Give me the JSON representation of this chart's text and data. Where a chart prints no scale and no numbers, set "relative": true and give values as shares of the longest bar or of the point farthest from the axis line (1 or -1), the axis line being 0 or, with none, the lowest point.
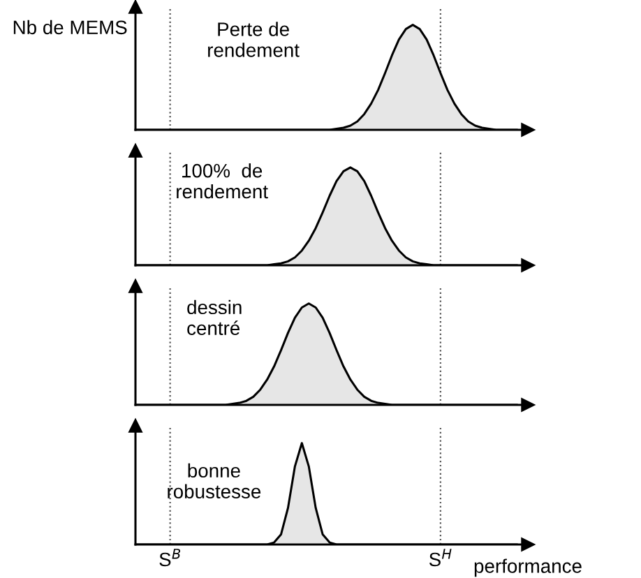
{
  "chart_data": [
    {
      "type": "area",
      "relative": true,
      "ylabel": "Nb de MEMS",
      "annotations": [
        "Perte de\nrendement"
      ],
      "color": "#e6e6e6",
      "categories": [
        null,
        null,
        null,
        null,
        null,
        null,
        null,
        null,
        null,
        null,
        null,
        null,
        null,
        null,
        null,
        null,
        null,
        null,
        null,
        null,
        null,
        null,
        null,
        null,
        null,
        null,
        null,
        null,
        null,
        null,
        null,
        null,
        null,
        null,
        null,
        null,
        null,
        null,
        null,
        null,
        null,
        null,
        null,
        null,
        null,
        null,
        null,
        null,
        null,
        null,
        null,
        null,
        null,
        null,
        null,
        null
      ],
      "values": [
        0,
        0,
        0,
        0,
        0,
        0,
        0,
        0,
        0,
        0,
        0,
        0,
        0,
        0,
        0,
        0,
        0,
        0,
        0,
        0,
        0,
        0,
        0,
        0,
        0,
        0,
        0,
        0,
        0,
        0.01,
        0.02,
        0.04,
        0.08,
        0.15,
        0.25,
        0.38,
        0.54,
        0.71,
        0.86,
        0.96,
        1,
        0.96,
        0.86,
        0.71,
        0.54,
        0.38,
        0.25,
        0.15,
        0.08,
        0.04,
        0.02,
        0.01,
        0,
        0,
        0,
        0
      ]
    },
    {
      "type": "area",
      "relative": true,
      "annotations": [
        "100%  de\nrendement"
      ],
      "color": "#e6e6e6",
      "categories": [
        null,
        null,
        null,
        null,
        null,
        null,
        null,
        null,
        null,
        null,
        null,
        null,
        null,
        null,
        null,
        null,
        null,
        null,
        null,
        null,
        null,
        null,
        null,
        null,
        null,
        null,
        null,
        null,
        null,
        null,
        null,
        null,
        null,
        null,
        null,
        null,
        null,
        null,
        null,
        null,
        null,
        null,
        null,
        null,
        null,
        null,
        null,
        null,
        null,
        null,
        null,
        null,
        null,
        null,
        null,
        null
      ],
      "values": [
        0,
        0,
        0,
        0,
        0,
        0,
        0,
        0,
        0,
        0,
        0,
        0,
        0,
        0,
        0,
        0,
        0,
        0,
        0,
        0,
        0.01,
        0.02,
        0.04,
        0.08,
        0.15,
        0.25,
        0.38,
        0.54,
        0.71,
        0.86,
        0.96,
        1,
        0.96,
        0.86,
        0.71,
        0.54,
        0.38,
        0.25,
        0.15,
        0.08,
        0.04,
        0.02,
        0.01,
        0,
        0,
        0,
        0,
        0,
        0,
        0,
        0,
        0,
        0,
        0,
        0,
        0
      ]
    },
    {
      "type": "area",
      "relative": true,
      "annotations": [
        "dessin\ncentré"
      ],
      "color": "#e6e6e6",
      "categories": [
        null,
        null,
        null,
        null,
        null,
        null,
        null,
        null,
        null,
        null,
        null,
        null,
        null,
        null,
        null,
        null,
        null,
        null,
        null,
        null,
        null,
        null,
        null,
        null,
        null,
        null,
        null,
        null,
        null,
        null,
        null,
        null,
        null,
        null,
        null,
        null,
        null,
        null,
        null,
        null,
        null,
        null,
        null,
        null,
        null,
        null,
        null,
        null,
        null,
        null,
        null,
        null,
        null,
        null,
        null,
        null
      ],
      "values": [
        0,
        0,
        0,
        0,
        0,
        0,
        0,
        0,
        0,
        0,
        0,
        0,
        0,
        0,
        0.01,
        0.02,
        0.04,
        0.08,
        0.15,
        0.25,
        0.38,
        0.54,
        0.71,
        0.86,
        0.96,
        1,
        0.96,
        0.86,
        0.71,
        0.54,
        0.38,
        0.25,
        0.15,
        0.08,
        0.04,
        0.02,
        0.01,
        0,
        0,
        0,
        0,
        0,
        0,
        0,
        0,
        0,
        0,
        0,
        0,
        0,
        0,
        0,
        0,
        0,
        0,
        0
      ]
    },
    {
      "type": "area",
      "relative": true,
      "xlabel": "performance",
      "annotations": [
        "bonne\nrobustesse"
      ],
      "color": "#e6e6e6",
      "categories": [
        null,
        null,
        null,
        null,
        null,
        "S$^{B}$",
        null,
        null,
        null,
        null,
        null,
        null,
        null,
        null,
        null,
        null,
        null,
        null,
        null,
        null,
        null,
        null,
        null,
        null,
        null,
        null,
        null,
        null,
        null,
        null,
        null,
        null,
        null,
        null,
        null,
        null,
        null,
        null,
        null,
        null,
        null,
        null,
        null,
        null,
        "S$^{H}$",
        null,
        null,
        null,
        null,
        null,
        null,
        null,
        null,
        null,
        null,
        null
      ],
      "values": [
        0,
        0,
        0,
        0,
        0,
        0,
        0,
        0,
        0,
        0,
        0,
        0,
        0,
        0,
        0,
        0,
        0,
        0,
        0,
        0,
        0.02,
        0.1,
        0.36,
        0.77,
        1,
        0.77,
        0.36,
        0.1,
        0.02,
        0,
        0,
        0,
        0,
        0,
        0,
        0,
        0,
        0,
        0,
        0,
        0,
        0,
        0,
        0,
        0,
        0,
        0,
        0,
        0,
        0,
        0,
        0,
        0,
        0,
        0,
        0
      ],
      "ref_lines": [
        {
          "axis": "x",
          "value": "S$^{B}$",
          "line_style": "dotted"
        },
        {
          "axis": "x",
          "value": "S$^{H}$",
          "line_style": "dotted"
        }
      ]
    }
  ]
}
